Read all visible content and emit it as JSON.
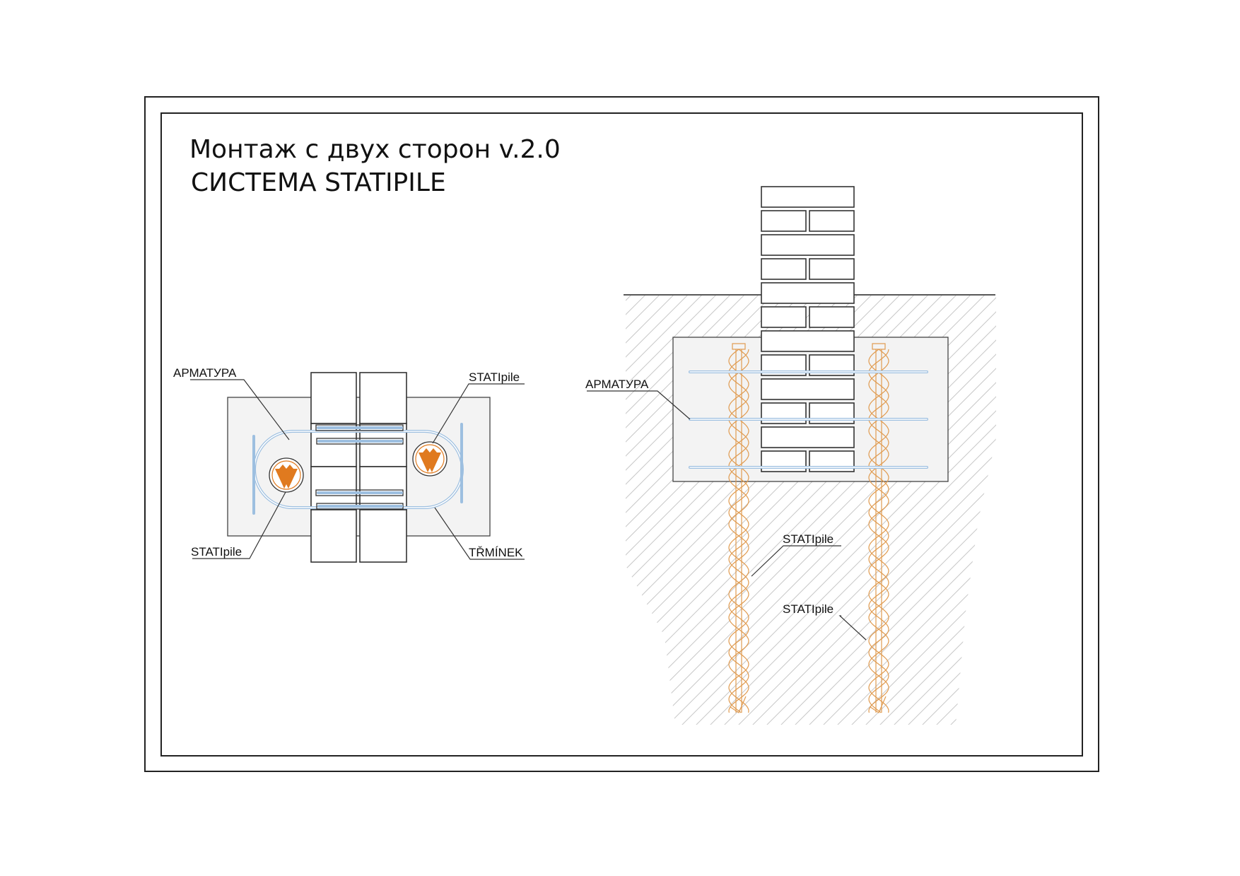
{
  "title": {
    "line1": "Монтаж с двух сторон v.2.0",
    "line2": "СИСТЕМА STATIPILE"
  },
  "plan_view": {
    "labels": {
      "rebar": "АРМАТУРА",
      "pile_top": "STATIpile",
      "pile_bottom": "STATIpile",
      "stirrup": "TŘMÍNEK"
    }
  },
  "section_view": {
    "labels": {
      "rebar": "АРМАТУРА",
      "pile_1": "STATIpile",
      "pile_2": "STATIpile"
    }
  },
  "colors": {
    "pile_accent": "#e07a1f",
    "rebar": "#9dbfe0",
    "line": "#333333"
  },
  "icons": {
    "pile_logo": "statipile-logo-icon"
  }
}
